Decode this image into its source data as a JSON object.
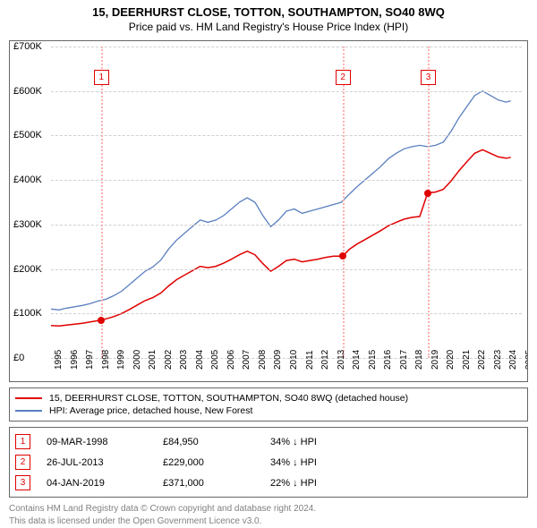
{
  "title_line1": "15, DEERHURST CLOSE, TOTTON, SOUTHAMPTON, SO40 8WQ",
  "title_line2": "Price paid vs. HM Land Registry's House Price Index (HPI)",
  "chart": {
    "x_min": 1995,
    "x_max": 2025,
    "y_min": 0,
    "y_max": 700000,
    "y_ticks": [
      0,
      100000,
      200000,
      300000,
      400000,
      500000,
      600000,
      700000
    ],
    "y_tick_labels": [
      "£0",
      "£100K",
      "£200K",
      "£300K",
      "£400K",
      "£500K",
      "£600K",
      "£700K"
    ],
    "x_ticks": [
      1995,
      1996,
      1997,
      1998,
      1999,
      2000,
      2001,
      2002,
      2003,
      2004,
      2005,
      2006,
      2007,
      2008,
      2009,
      2010,
      2011,
      2012,
      2013,
      2014,
      2015,
      2016,
      2017,
      2018,
      2019,
      2020,
      2021,
      2022,
      2023,
      2024,
      2025
    ],
    "grid_color": "#d0d0d0",
    "series": [
      {
        "name": "HPI: Average price, detached house, New Forest",
        "color": "#5a7fc0",
        "width": 1.3,
        "points": [
          [
            1995.0,
            110000
          ],
          [
            1995.5,
            108000
          ],
          [
            1996.0,
            112000
          ],
          [
            1996.5,
            115000
          ],
          [
            1997.0,
            118000
          ],
          [
            1997.5,
            122000
          ],
          [
            1998.0,
            128000
          ],
          [
            1998.5,
            132000
          ],
          [
            1999.0,
            140000
          ],
          [
            1999.5,
            150000
          ],
          [
            2000.0,
            165000
          ],
          [
            2000.5,
            180000
          ],
          [
            2001.0,
            195000
          ],
          [
            2001.5,
            205000
          ],
          [
            2002.0,
            220000
          ],
          [
            2002.5,
            245000
          ],
          [
            2003.0,
            265000
          ],
          [
            2003.5,
            280000
          ],
          [
            2004.0,
            295000
          ],
          [
            2004.5,
            310000
          ],
          [
            2005.0,
            305000
          ],
          [
            2005.5,
            310000
          ],
          [
            2006.0,
            320000
          ],
          [
            2006.5,
            335000
          ],
          [
            2007.0,
            350000
          ],
          [
            2007.5,
            360000
          ],
          [
            2008.0,
            350000
          ],
          [
            2008.5,
            320000
          ],
          [
            2009.0,
            295000
          ],
          [
            2009.5,
            310000
          ],
          [
            2010.0,
            330000
          ],
          [
            2010.5,
            335000
          ],
          [
            2011.0,
            325000
          ],
          [
            2011.5,
            330000
          ],
          [
            2012.0,
            335000
          ],
          [
            2012.5,
            340000
          ],
          [
            2013.0,
            345000
          ],
          [
            2013.5,
            350000
          ],
          [
            2014.0,
            368000
          ],
          [
            2014.5,
            385000
          ],
          [
            2015.0,
            400000
          ],
          [
            2015.5,
            415000
          ],
          [
            2016.0,
            430000
          ],
          [
            2016.5,
            448000
          ],
          [
            2017.0,
            460000
          ],
          [
            2017.5,
            470000
          ],
          [
            2018.0,
            475000
          ],
          [
            2018.5,
            478000
          ],
          [
            2019.0,
            475000
          ],
          [
            2019.5,
            478000
          ],
          [
            2020.0,
            485000
          ],
          [
            2020.5,
            510000
          ],
          [
            2021.0,
            540000
          ],
          [
            2021.5,
            565000
          ],
          [
            2022.0,
            590000
          ],
          [
            2022.5,
            600000
          ],
          [
            2023.0,
            590000
          ],
          [
            2023.5,
            580000
          ],
          [
            2024.0,
            575000
          ],
          [
            2024.3,
            578000
          ]
        ]
      },
      {
        "name": "15, DEERHURST CLOSE, TOTTON, SOUTHAMPTON, SO40 8WQ (detached house)",
        "color": "#e00000",
        "width": 1.5,
        "points": [
          [
            1995.0,
            73000
          ],
          [
            1995.5,
            72000
          ],
          [
            1996.0,
            74000
          ],
          [
            1996.5,
            76000
          ],
          [
            1997.0,
            78000
          ],
          [
            1997.5,
            81000
          ],
          [
            1998.0,
            84000
          ],
          [
            1998.2,
            84950
          ],
          [
            1998.5,
            88000
          ],
          [
            1999.0,
            93000
          ],
          [
            1999.5,
            100000
          ],
          [
            2000.0,
            109000
          ],
          [
            2000.5,
            119000
          ],
          [
            2001.0,
            129000
          ],
          [
            2001.5,
            136000
          ],
          [
            2002.0,
            146000
          ],
          [
            2002.5,
            162000
          ],
          [
            2003.0,
            176000
          ],
          [
            2003.5,
            186000
          ],
          [
            2004.0,
            196000
          ],
          [
            2004.5,
            206000
          ],
          [
            2005.0,
            203000
          ],
          [
            2005.5,
            206000
          ],
          [
            2006.0,
            213000
          ],
          [
            2006.5,
            222000
          ],
          [
            2007.0,
            232000
          ],
          [
            2007.5,
            240000
          ],
          [
            2008.0,
            232000
          ],
          [
            2008.5,
            212000
          ],
          [
            2009.0,
            195000
          ],
          [
            2009.5,
            206000
          ],
          [
            2010.0,
            219000
          ],
          [
            2010.5,
            222000
          ],
          [
            2011.0,
            216000
          ],
          [
            2011.5,
            219000
          ],
          [
            2012.0,
            222000
          ],
          [
            2012.5,
            226000
          ],
          [
            2013.0,
            229000
          ],
          [
            2013.6,
            229000
          ],
          [
            2014.0,
            244000
          ],
          [
            2014.5,
            256000
          ],
          [
            2015.0,
            266000
          ],
          [
            2015.5,
            276000
          ],
          [
            2016.0,
            286000
          ],
          [
            2016.5,
            297000
          ],
          [
            2017.0,
            305000
          ],
          [
            2017.5,
            312000
          ],
          [
            2018.0,
            316000
          ],
          [
            2018.5,
            318000
          ],
          [
            2019.0,
            371000
          ],
          [
            2019.5,
            373000
          ],
          [
            2020.0,
            379000
          ],
          [
            2020.5,
            398000
          ],
          [
            2021.0,
            421000
          ],
          [
            2021.5,
            441000
          ],
          [
            2022.0,
            460000
          ],
          [
            2022.5,
            468000
          ],
          [
            2023.0,
            460000
          ],
          [
            2023.5,
            452000
          ],
          [
            2024.0,
            449000
          ],
          [
            2024.3,
            451000
          ]
        ]
      }
    ],
    "sale_markers": [
      {
        "n": "1",
        "x": 1998.18,
        "y": 84950,
        "color": "#e00000"
      },
      {
        "n": "2",
        "x": 2013.57,
        "y": 229000,
        "color": "#e00000"
      },
      {
        "n": "3",
        "x": 2019.01,
        "y": 371000,
        "color": "#e00000"
      }
    ],
    "vline_color": "#ffb0b0",
    "badge_top_y": 648000
  },
  "legend": [
    {
      "color": "#e00000",
      "label": "15, DEERHURST CLOSE, TOTTON, SOUTHAMPTON, SO40 8WQ (detached house)"
    },
    {
      "color": "#5a7fc0",
      "label": "HPI: Average price, detached house, New Forest"
    }
  ],
  "sales": [
    {
      "n": "1",
      "color": "#e00000",
      "date": "09-MAR-1998",
      "price": "£84,950",
      "delta": "34% ↓ HPI"
    },
    {
      "n": "2",
      "color": "#e00000",
      "date": "26-JUL-2013",
      "price": "£229,000",
      "delta": "34% ↓ HPI"
    },
    {
      "n": "3",
      "color": "#e00000",
      "date": "04-JAN-2019",
      "price": "£371,000",
      "delta": "22% ↓ HPI"
    }
  ],
  "footer1": "Contains HM Land Registry data © Crown copyright and database right 2024.",
  "footer2": "This data is licensed under the Open Government Licence v3.0."
}
